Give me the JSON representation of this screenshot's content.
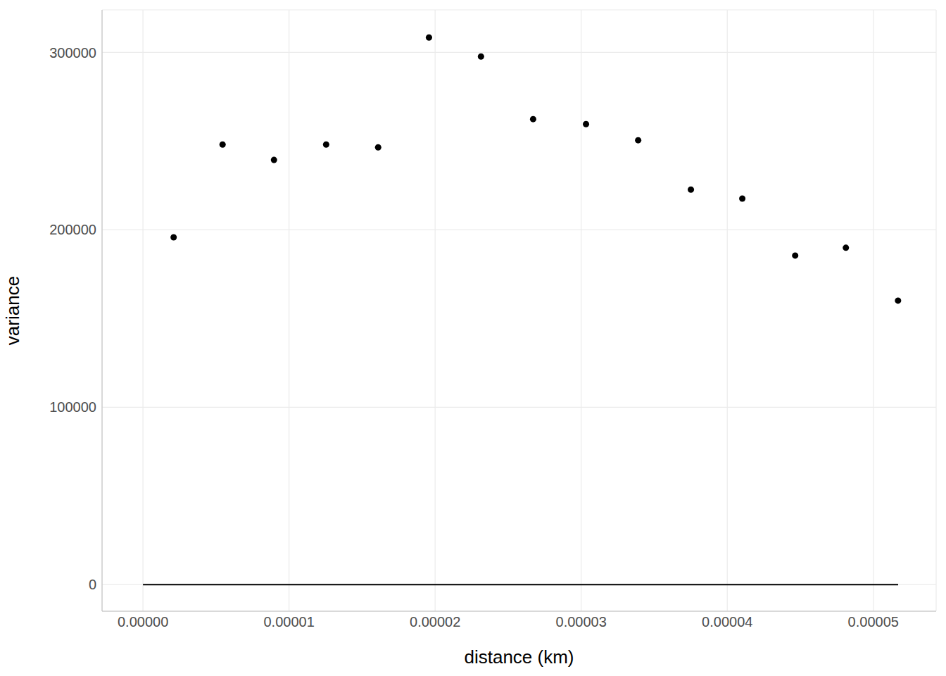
{
  "chart_data": {
    "type": "scatter",
    "x_label": "distance (km)",
    "y_label": "variance",
    "x": [
      2.1e-06,
      5.45e-06,
      8.97e-06,
      1.254e-05,
      1.61e-05,
      1.958e-05,
      2.314e-05,
      2.671e-05,
      3.033e-05,
      3.39e-05,
      3.751e-05,
      4.103e-05,
      4.465e-05,
      4.812e-05,
      5.169e-05
    ],
    "values": [
      195800,
      248100,
      239400,
      248100,
      246500,
      308400,
      297700,
      262400,
      259600,
      250500,
      222700,
      217600,
      185500,
      189900,
      160100
    ],
    "color": "#000000",
    "marker": "circle",
    "fit": {
      "type": "line",
      "x": [
        0,
        5.17e-05
      ],
      "values": [
        0,
        0
      ],
      "color": "#000000",
      "line_style": "solid"
    },
    "xlim": [
      -2.8e-06,
      5.43e-05
    ],
    "ylim": [
      -15000,
      324000
    ],
    "xticks": [
      {
        "value": 0,
        "label": "0.00000"
      },
      {
        "value": 1e-05,
        "label": "0.00001"
      },
      {
        "value": 2e-05,
        "label": "0.00002"
      },
      {
        "value": 3e-05,
        "label": "0.00003"
      },
      {
        "value": 4e-05,
        "label": "0.00004"
      },
      {
        "value": 5e-05,
        "label": "0.00005"
      }
    ],
    "yticks": [
      0,
      100000,
      200000,
      300000
    ],
    "grid": true
  }
}
